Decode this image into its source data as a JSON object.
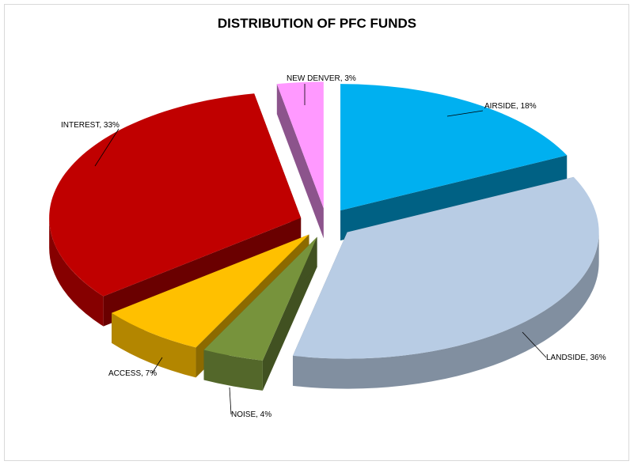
{
  "chart_data": {
    "type": "pie",
    "title": "DISTRIBUTION OF PFC FUNDS",
    "slices": [
      {
        "label": "AIRSIDE, 18%",
        "value": 18,
        "color": "#00b0f0"
      },
      {
        "label": "LANDSIDE, 36%",
        "value": 36,
        "color": "#b8cce4"
      },
      {
        "label": "NOISE, 4%",
        "value": 4,
        "color": "#77933c"
      },
      {
        "label": "ACCESS, 7%",
        "value": 7,
        "color": "#ffc000"
      },
      {
        "label": "INTEREST, 33%",
        "value": 33,
        "color": "#c00000"
      },
      {
        "label": "NEW DENVER, 3%",
        "value": 3,
        "color": "#ff99ff"
      }
    ],
    "legend": "none",
    "style": "3d-exploded"
  }
}
